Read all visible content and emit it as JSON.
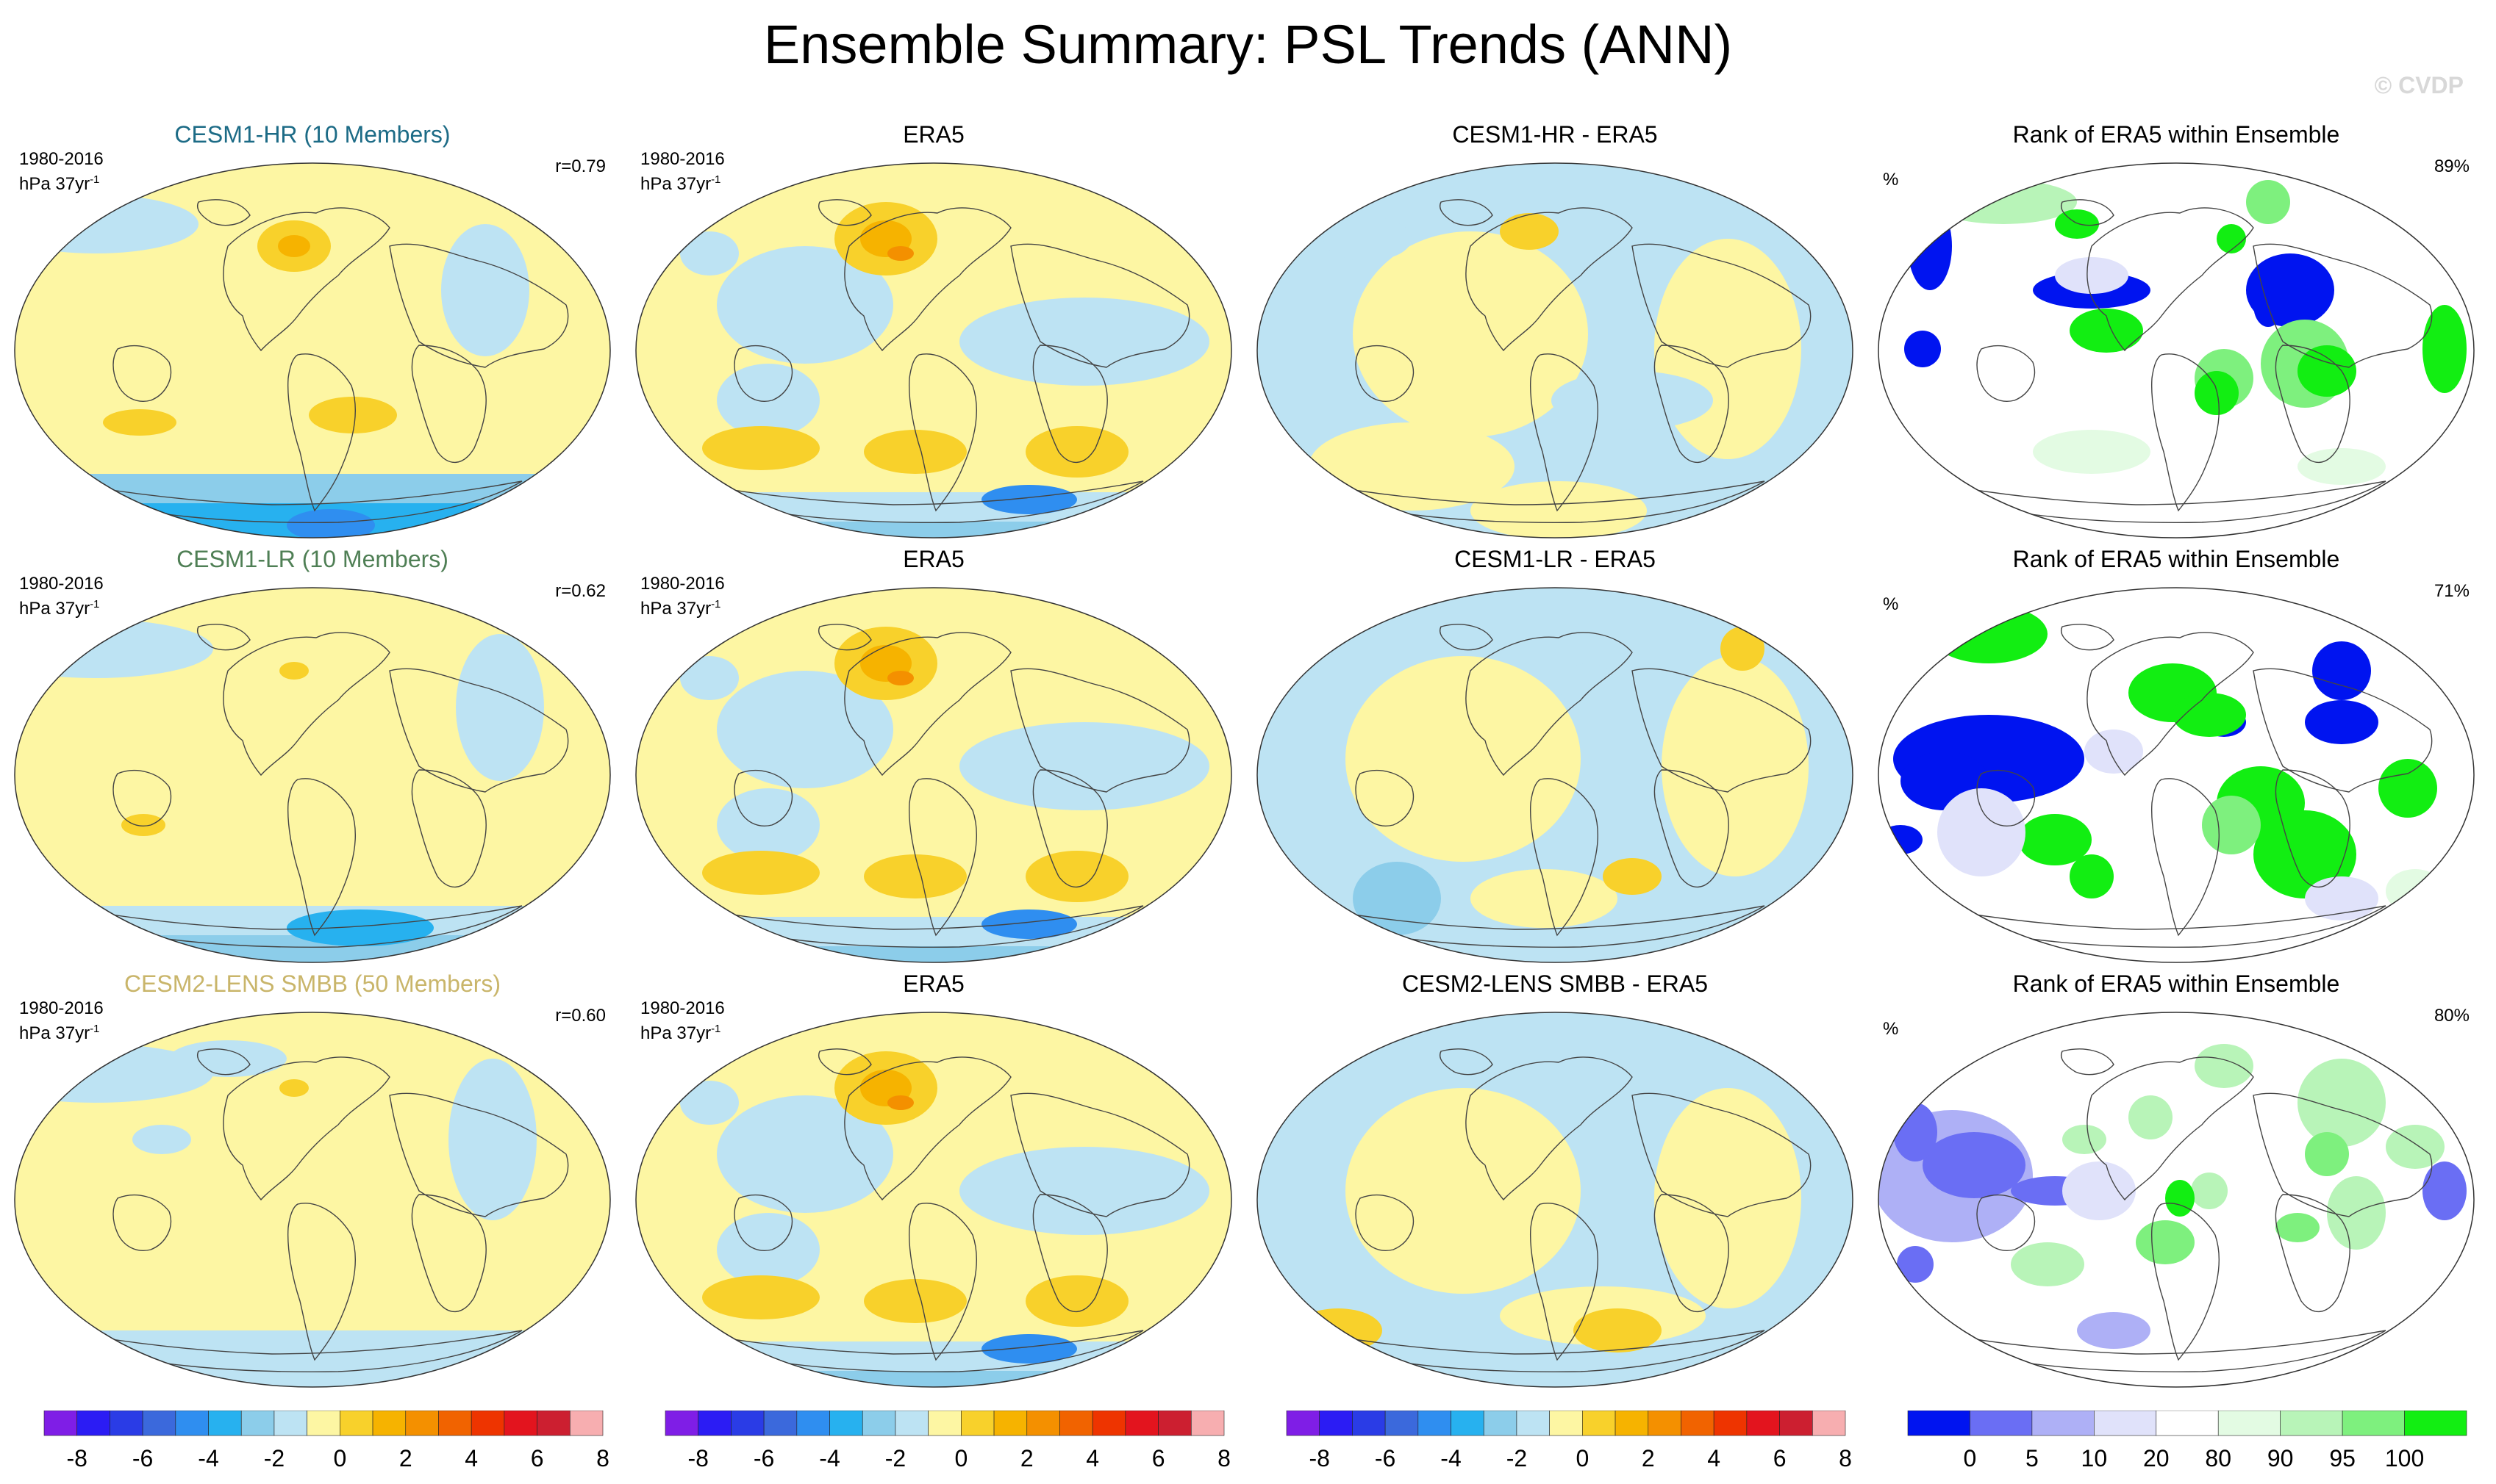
{
  "figure": {
    "title": "Ensemble Summary: PSL Trends (ANN)",
    "credit": "© CVDP"
  },
  "colors": {
    "trend_scale": [
      "#7f1ee6",
      "#2b1cf4",
      "#2a3ce6",
      "#3b69dc",
      "#2f8ef0",
      "#27b1ef",
      "#8ccdea",
      "#bde3f3",
      "#fdf6a3",
      "#f8d12b",
      "#f6b300",
      "#f49000",
      "#f16300",
      "#ee3400",
      "#e3141e",
      "#cc1f30",
      "#f7aeb0"
    ],
    "rank_scale": [
      "#0014f0",
      "#6a6ef4",
      "#aeb0f6",
      "#e0e2fa",
      "#ffffff",
      "#e3fbe3",
      "#b8f4b8",
      "#7ef07e",
      "#12ee12"
    ]
  },
  "chart_data": [
    {
      "type": "heatmap",
      "title": "CESM1-HR (10 Members)",
      "title_color": "#1c6b86",
      "period": "1980-2016",
      "units": "hPa 37yr",
      "units_sup": "-1",
      "stat": "r=0.79",
      "pattern": "hr_model"
    },
    {
      "type": "heatmap",
      "title": "ERA5",
      "title_color": "#000000",
      "period": "1980-2016",
      "units": "hPa 37yr",
      "units_sup": "-1",
      "stat": "",
      "pattern": "era5"
    },
    {
      "type": "heatmap",
      "title": "CESM1-HR - ERA5",
      "title_color": "#000000",
      "period": "",
      "units": "",
      "units_sup": "",
      "stat": "",
      "pattern": "diff_hr"
    },
    {
      "type": "heatmap",
      "title": "Rank of ERA5 within Ensemble",
      "title_color": "#000000",
      "period": "",
      "units": "%",
      "units_sup": "",
      "stat": "89%",
      "pattern": "rank_hr"
    },
    {
      "type": "heatmap",
      "title": "CESM1-LR (10 Members)",
      "title_color": "#4f7f55",
      "period": "1980-2016",
      "units": "hPa 37yr",
      "units_sup": "-1",
      "stat": "r=0.62",
      "pattern": "lr_model"
    },
    {
      "type": "heatmap",
      "title": "ERA5",
      "title_color": "#000000",
      "period": "1980-2016",
      "units": "hPa 37yr",
      "units_sup": "-1",
      "stat": "",
      "pattern": "era5"
    },
    {
      "type": "heatmap",
      "title": "CESM1-LR - ERA5",
      "title_color": "#000000",
      "period": "",
      "units": "",
      "units_sup": "",
      "stat": "",
      "pattern": "diff_lr"
    },
    {
      "type": "heatmap",
      "title": "Rank of ERA5 within Ensemble",
      "title_color": "#000000",
      "period": "",
      "units": "%",
      "units_sup": "",
      "stat": "71%",
      "pattern": "rank_lr"
    },
    {
      "type": "heatmap",
      "title": "CESM2-LENS SMBB (50 Members)",
      "title_color": "#c9b56a",
      "period": "1980-2016",
      "units": "hPa 37yr",
      "units_sup": "-1",
      "stat": "r=0.60",
      "pattern": "smbb_model"
    },
    {
      "type": "heatmap",
      "title": "ERA5",
      "title_color": "#000000",
      "period": "1980-2016",
      "units": "hPa 37yr",
      "units_sup": "-1",
      "stat": "",
      "pattern": "era5"
    },
    {
      "type": "heatmap",
      "title": "CESM2-LENS SMBB - ERA5",
      "title_color": "#000000",
      "period": "",
      "units": "",
      "units_sup": "",
      "stat": "",
      "pattern": "diff_smbb"
    },
    {
      "type": "heatmap",
      "title": "Rank of ERA5 within Ensemble",
      "title_color": "#000000",
      "period": "",
      "units": "%",
      "units_sup": "",
      "stat": "80%",
      "pattern": "rank_smbb"
    }
  ],
  "colorbars": [
    {
      "scale": "trend",
      "ticks": [
        "-8",
        "-6",
        "-4",
        "-2",
        "0",
        "2",
        "4",
        "6",
        "8"
      ]
    },
    {
      "scale": "trend",
      "ticks": [
        "-8",
        "-6",
        "-4",
        "-2",
        "0",
        "2",
        "4",
        "6",
        "8"
      ]
    },
    {
      "scale": "trend",
      "ticks": [
        "-8",
        "-6",
        "-4",
        "-2",
        "0",
        "2",
        "4",
        "6",
        "8"
      ]
    },
    {
      "scale": "rank",
      "ticks": [
        "0",
        "5",
        "10",
        "20",
        "80",
        "90",
        "95",
        "100"
      ]
    }
  ]
}
